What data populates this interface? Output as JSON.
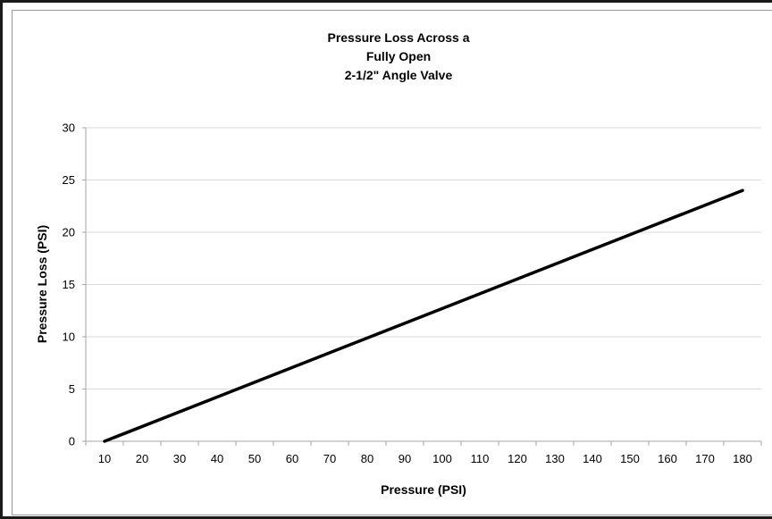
{
  "chart_data": {
    "type": "line",
    "title_lines": [
      "Pressure Loss Across a",
      "Fully Open",
      "2-1/2\" Angle Valve"
    ],
    "xlabel": "Pressure (PSI)",
    "ylabel": "Pressure Loss (PSI)",
    "categories": [
      "10",
      "20",
      "30",
      "40",
      "50",
      "60",
      "70",
      "80",
      "90",
      "100",
      "110",
      "120",
      "130",
      "140",
      "150",
      "160",
      "170",
      "180"
    ],
    "yticks": [
      "0",
      "5",
      "10",
      "15",
      "20",
      "25",
      "30"
    ],
    "ylim": [
      0,
      30
    ],
    "grid": true,
    "legend": "none",
    "series": [
      {
        "x": [
          10,
          180
        ],
        "y": [
          0,
          24
        ],
        "color": "#000000"
      }
    ]
  }
}
